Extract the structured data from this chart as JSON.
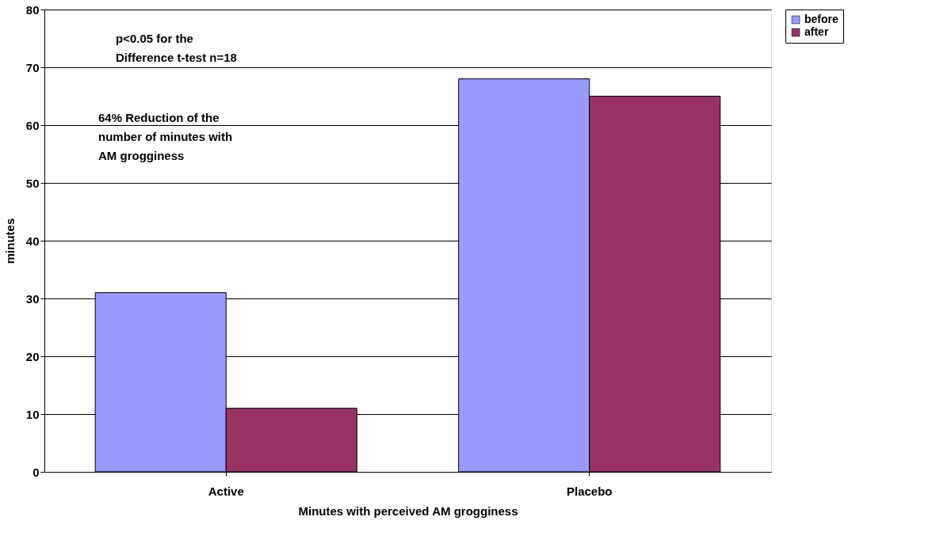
{
  "chart_data": {
    "type": "bar",
    "xlabel": "Minutes with perceived AM grogginess",
    "ylabel": "minutes",
    "categories": [
      "Active",
      "Placebo"
    ],
    "series": [
      {
        "name": "before",
        "color": "#9999ff",
        "values": [
          31,
          68
        ]
      },
      {
        "name": "after",
        "color": "#993366",
        "values": [
          11,
          65
        ]
      }
    ],
    "ylim": [
      0,
      80
    ],
    "yticks": [
      0,
      10,
      20,
      30,
      40,
      50,
      60,
      70,
      80
    ],
    "grid": "y",
    "legend": "right",
    "annotations": [
      "p<0.05 for the\nDifference t-test n=18",
      "64% Reduction of the\nnumber of minutes with\nAM grogginess"
    ]
  }
}
